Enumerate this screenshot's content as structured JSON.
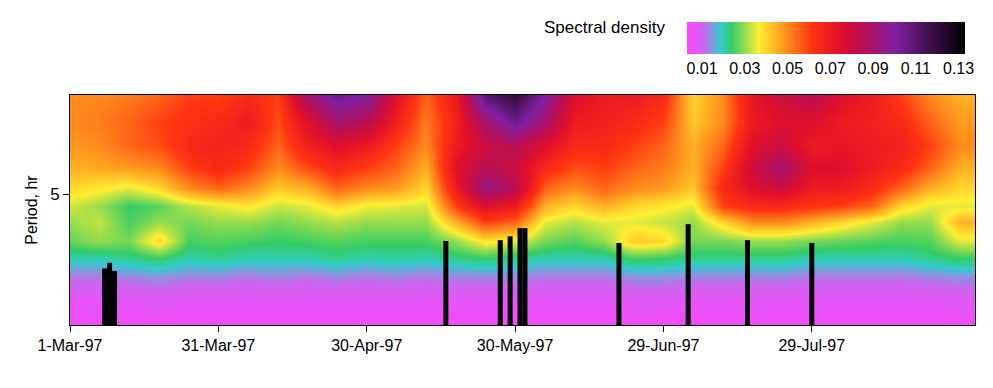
{
  "chart_data": {
    "type": "heatmap",
    "y_label": "Period, hr",
    "log": "y",
    "xlim": [
      "1997-03-01",
      "1997-08-31"
    ],
    "xticks": [
      {
        "value": "1997-03-01",
        "label": "1-Mar-97"
      },
      {
        "value": "1997-03-31",
        "label": "31-Mar-97"
      },
      {
        "value": "1997-04-30",
        "label": "30-Apr-97"
      },
      {
        "value": "1997-05-30",
        "label": "30-May-97"
      },
      {
        "value": "1997-06-29",
        "label": "29-Jun-97"
      },
      {
        "value": "1997-07-29",
        "label": "29-Jul-97"
      }
    ],
    "ylim": [
      2,
      10
    ],
    "yticks": [
      5
    ],
    "colorbar": {
      "title": "Spectral density",
      "range": [
        0.003,
        0.133
      ],
      "ticks": [
        0.01,
        0.03,
        0.05,
        0.07,
        0.09,
        0.11,
        0.13
      ]
    },
    "x": [
      "1997-03-01",
      "1997-03-07",
      "1997-03-13",
      "1997-03-19",
      "1997-03-25",
      "1997-03-31",
      "1997-04-06",
      "1997-04-12",
      "1997-04-18",
      "1997-04-24",
      "1997-04-30",
      "1997-05-06",
      "1997-05-12",
      "1997-05-18",
      "1997-05-24",
      "1997-05-30",
      "1997-06-05",
      "1997-06-11",
      "1997-06-17",
      "1997-06-23",
      "1997-06-29",
      "1997-07-05",
      "1997-07-11",
      "1997-07-17",
      "1997-07-23",
      "1997-07-29",
      "1997-08-04",
      "1997-08-10",
      "1997-08-16",
      "1997-08-22",
      "1997-08-28"
    ],
    "y": [
      2.0,
      2.4,
      2.8,
      3.2,
      3.6,
      4.1,
      4.6,
      5.2,
      6.0,
      7.0,
      8.3,
      10.0
    ],
    "z_by_x": [
      [
        0.005,
        0.007,
        0.012,
        0.02,
        0.027,
        0.03,
        0.034,
        0.04,
        0.045,
        0.048,
        0.05,
        0.05
      ],
      [
        0.005,
        0.007,
        0.012,
        0.02,
        0.03,
        0.033,
        0.03,
        0.038,
        0.046,
        0.05,
        0.052,
        0.05
      ],
      [
        0.005,
        0.007,
        0.013,
        0.022,
        0.028,
        0.025,
        0.024,
        0.035,
        0.048,
        0.055,
        0.055,
        0.052
      ],
      [
        0.005,
        0.008,
        0.014,
        0.024,
        0.04,
        0.03,
        0.026,
        0.04,
        0.05,
        0.058,
        0.06,
        0.055
      ],
      [
        0.005,
        0.007,
        0.013,
        0.02,
        0.025,
        0.028,
        0.032,
        0.05,
        0.06,
        0.065,
        0.063,
        0.06
      ],
      [
        0.005,
        0.007,
        0.013,
        0.022,
        0.026,
        0.03,
        0.035,
        0.055,
        0.065,
        0.068,
        0.065,
        0.06
      ],
      [
        0.005,
        0.007,
        0.012,
        0.02,
        0.025,
        0.03,
        0.038,
        0.05,
        0.06,
        0.065,
        0.07,
        0.065
      ],
      [
        0.005,
        0.007,
        0.013,
        0.02,
        0.024,
        0.028,
        0.033,
        0.042,
        0.05,
        0.055,
        0.058,
        0.06
      ],
      [
        0.005,
        0.007,
        0.012,
        0.02,
        0.025,
        0.03,
        0.035,
        0.045,
        0.058,
        0.068,
        0.075,
        0.09
      ],
      [
        0.005,
        0.007,
        0.013,
        0.022,
        0.026,
        0.032,
        0.04,
        0.055,
        0.065,
        0.075,
        0.09,
        0.105
      ],
      [
        0.005,
        0.007,
        0.012,
        0.02,
        0.025,
        0.03,
        0.036,
        0.05,
        0.06,
        0.07,
        0.085,
        0.1
      ],
      [
        0.005,
        0.007,
        0.013,
        0.021,
        0.025,
        0.03,
        0.035,
        0.048,
        0.055,
        0.06,
        0.068,
        0.075
      ],
      [
        0.005,
        0.007,
        0.012,
        0.02,
        0.025,
        0.03,
        0.034,
        0.04,
        0.045,
        0.05,
        0.052,
        0.055
      ],
      [
        0.005,
        0.007,
        0.013,
        0.022,
        0.03,
        0.045,
        0.06,
        0.07,
        0.075,
        0.07,
        0.068,
        0.07
      ],
      [
        0.005,
        0.007,
        0.013,
        0.024,
        0.038,
        0.06,
        0.075,
        0.095,
        0.085,
        0.08,
        0.09,
        0.11
      ],
      [
        0.005,
        0.007,
        0.013,
        0.022,
        0.035,
        0.055,
        0.07,
        0.085,
        0.08,
        0.085,
        0.105,
        0.12
      ],
      [
        0.005,
        0.007,
        0.012,
        0.02,
        0.028,
        0.035,
        0.045,
        0.055,
        0.065,
        0.075,
        0.09,
        0.1
      ],
      [
        0.005,
        0.007,
        0.012,
        0.02,
        0.026,
        0.032,
        0.04,
        0.05,
        0.058,
        0.065,
        0.07,
        0.075
      ],
      [
        0.005,
        0.007,
        0.012,
        0.02,
        0.03,
        0.035,
        0.045,
        0.055,
        0.06,
        0.065,
        0.068,
        0.07
      ],
      [
        0.005,
        0.008,
        0.014,
        0.025,
        0.042,
        0.035,
        0.04,
        0.05,
        0.055,
        0.06,
        0.065,
        0.07
      ],
      [
        0.005,
        0.008,
        0.014,
        0.024,
        0.04,
        0.033,
        0.038,
        0.048,
        0.052,
        0.055,
        0.06,
        0.065
      ],
      [
        0.005,
        0.007,
        0.013,
        0.022,
        0.028,
        0.03,
        0.035,
        0.042,
        0.045,
        0.045,
        0.042,
        0.04
      ],
      [
        0.005,
        0.007,
        0.013,
        0.022,
        0.028,
        0.04,
        0.06,
        0.065,
        0.06,
        0.055,
        0.05,
        0.05
      ],
      [
        0.005,
        0.007,
        0.013,
        0.022,
        0.03,
        0.05,
        0.065,
        0.075,
        0.08,
        0.075,
        0.07,
        0.072
      ],
      [
        0.005,
        0.007,
        0.013,
        0.022,
        0.03,
        0.05,
        0.065,
        0.08,
        0.09,
        0.08,
        0.075,
        0.08
      ],
      [
        0.005,
        0.007,
        0.012,
        0.02,
        0.028,
        0.045,
        0.062,
        0.07,
        0.075,
        0.07,
        0.075,
        0.085
      ],
      [
        0.005,
        0.007,
        0.012,
        0.02,
        0.027,
        0.04,
        0.06,
        0.07,
        0.075,
        0.072,
        0.07,
        0.075
      ],
      [
        0.005,
        0.007,
        0.012,
        0.02,
        0.026,
        0.035,
        0.055,
        0.065,
        0.07,
        0.07,
        0.068,
        0.07
      ],
      [
        0.005,
        0.007,
        0.012,
        0.02,
        0.025,
        0.03,
        0.04,
        0.055,
        0.065,
        0.068,
        0.065,
        0.06
      ],
      [
        0.005,
        0.007,
        0.013,
        0.022,
        0.026,
        0.03,
        0.035,
        0.045,
        0.055,
        0.06,
        0.055,
        0.05
      ],
      [
        0.005,
        0.008,
        0.014,
        0.024,
        0.035,
        0.045,
        0.035,
        0.04,
        0.045,
        0.05,
        0.048,
        0.045
      ]
    ],
    "events": {
      "color": "#000000",
      "x": [
        "1997-03-08",
        "1997-03-09",
        "1997-03-10",
        "1997-05-16",
        "1997-05-27",
        "1997-05-29",
        "1997-05-31",
        "1997-06-01",
        "1997-06-20",
        "1997-07-04",
        "1997-07-16",
        "1997-07-29"
      ],
      "values": [
        2.97,
        3.09,
        2.92,
        3.6,
        3.62,
        3.72,
        3.94,
        3.94,
        3.55,
        4.05,
        3.62,
        3.55
      ]
    }
  }
}
